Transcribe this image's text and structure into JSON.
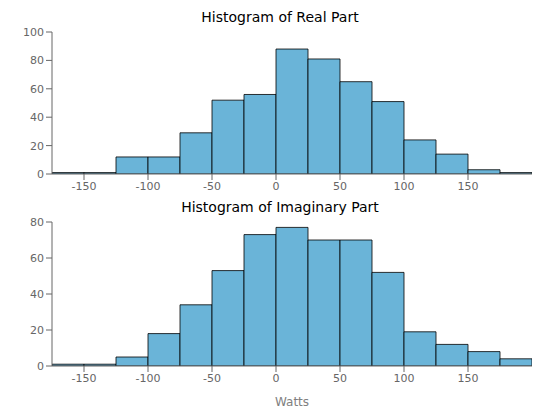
{
  "chart_data": [
    {
      "type": "histogram",
      "title": "Histogram of Real Part",
      "bins": [
        -175,
        -150,
        -125,
        -100,
        -75,
        -50,
        -25,
        0,
        25,
        50,
        75,
        100,
        125,
        150,
        175,
        200
      ],
      "values": [
        1,
        1,
        12,
        12,
        29,
        52,
        56,
        88,
        81,
        65,
        51,
        24,
        14,
        3,
        1
      ],
      "color": "#6ab4d8",
      "xlim": [
        -175,
        200
      ],
      "xticks": [
        -150,
        -100,
        -50,
        0,
        50,
        100,
        150
      ],
      "ylim": [
        0,
        100
      ],
      "yticks": [
        0,
        20,
        40,
        60,
        80,
        100
      ]
    },
    {
      "type": "histogram",
      "title": "Histogram of Imaginary Part",
      "x_label": "Watts",
      "bins": [
        -175,
        -150,
        -125,
        -100,
        -75,
        -50,
        -25,
        0,
        25,
        50,
        75,
        100,
        125,
        150,
        175,
        200
      ],
      "values": [
        1,
        1,
        5,
        18,
        34,
        53,
        73,
        77,
        70,
        70,
        52,
        19,
        12,
        8,
        4
      ],
      "color": "#6ab4d8",
      "xlim": [
        -175,
        200
      ],
      "xticks": [
        -150,
        -100,
        -50,
        0,
        50,
        100,
        150
      ],
      "ylim": [
        0,
        80
      ],
      "yticks": [
        0,
        20,
        40,
        60,
        80
      ]
    }
  ]
}
